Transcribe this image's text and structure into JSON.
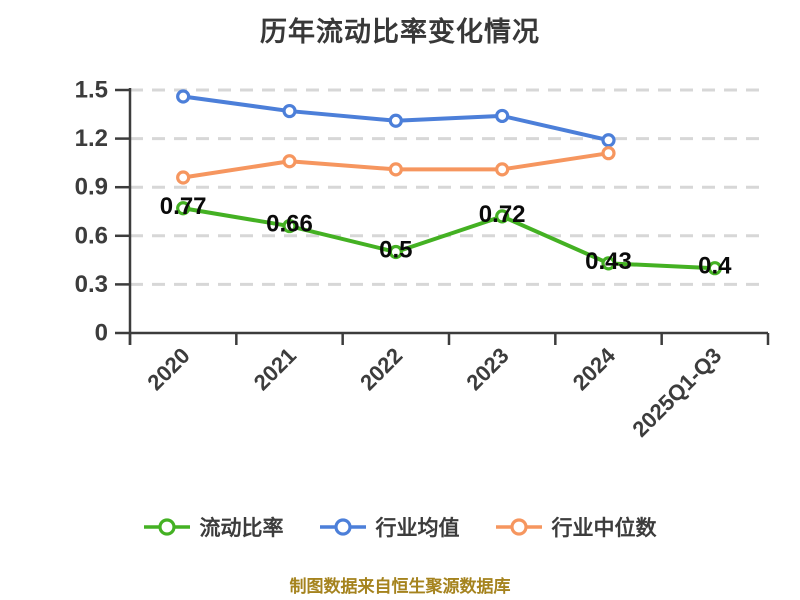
{
  "chart_data": {
    "type": "line",
    "title": "历年流动比率变化情况",
    "footer": "制图数据来自恒生聚源数据库",
    "categories": [
      "2020",
      "2021",
      "2022",
      "2023",
      "2024",
      "2025Q1-Q3"
    ],
    "series": [
      {
        "name": "流动比率",
        "color": "#44b123",
        "values": [
          0.77,
          0.66,
          0.5,
          0.72,
          0.43,
          0.4
        ],
        "show_point_labels": true
      },
      {
        "name": "行业均值",
        "color": "#4c7fd9",
        "values": [
          1.46,
          1.37,
          1.31,
          1.34,
          1.19,
          null
        ],
        "show_point_labels": false
      },
      {
        "name": "行业中位数",
        "color": "#f6965f",
        "values": [
          0.96,
          1.06,
          1.01,
          1.01,
          1.11,
          null
        ],
        "show_point_labels": false
      }
    ],
    "ylim": [
      0,
      1.5
    ],
    "yticks": [
      0,
      0.3,
      0.6,
      0.9,
      1.2,
      1.5
    ],
    "grid": {
      "horizontal": true,
      "style": "dashed",
      "color": "#d7d7d7"
    },
    "legend_position": "bottom",
    "marker_style": "white-filled circle with colored ring",
    "colors": {
      "title": "#383838",
      "axis": "#3c3c3c",
      "tick_text": "#3c3c3c",
      "grid": "#d7d7d7",
      "data_label": "#0a0a0a",
      "footer_text": "#a5831e",
      "background": "#ffffff"
    }
  }
}
